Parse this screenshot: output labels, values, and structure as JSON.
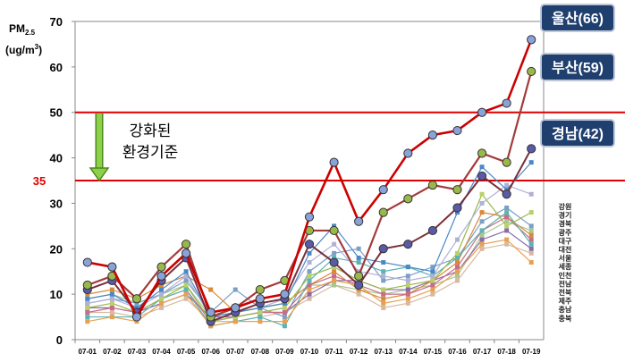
{
  "chart_data": {
    "type": "line",
    "ylabel_main": "PM",
    "ylabel_sub": "2.5",
    "ylabel_unit": "(ug/m",
    "ylabel_unit_sup": "3",
    "ylabel_unit_close": ")",
    "ylim": [
      0,
      70
    ],
    "yticks": [
      "0",
      "10",
      "20",
      "30",
      "40",
      "50",
      "60",
      "70"
    ],
    "grid": false,
    "categories": [
      "07-01",
      "07-02",
      "07-03",
      "07-04",
      "07-05",
      "07-06",
      "07-07",
      "07-08",
      "07-09",
      "07-10",
      "07-11",
      "07-12",
      "07-13",
      "07-14",
      "07-15",
      "07-16",
      "07-17",
      "07-18",
      "07-19"
    ],
    "reference_lines": [
      {
        "value": 50,
        "color": "#e00000"
      },
      {
        "value": 35,
        "color": "#e00000",
        "label": "35"
      }
    ],
    "annotation": {
      "line1": "강화된",
      "line2": "환경기준"
    },
    "callouts": [
      {
        "label": "울산(66)",
        "value": 66
      },
      {
        "label": "부산(59)",
        "value": 59
      },
      {
        "label": "경남(42)",
        "value": 42
      }
    ],
    "legend_labels": [
      "강원",
      "경기",
      "경북",
      "광주",
      "대구",
      "대전",
      "서울",
      "세종",
      "인천",
      "전남",
      "전북",
      "제주",
      "충남",
      "충북"
    ],
    "series": [
      {
        "name": "울산",
        "color": "#cc0000",
        "marker": "#8aa2d8",
        "width": 2.6,
        "values": [
          17,
          16,
          5,
          14,
          19,
          6,
          7,
          9,
          10,
          27,
          39,
          26,
          33,
          41,
          45,
          46,
          50,
          52,
          66
        ]
      },
      {
        "name": "부산",
        "color": "#a33b3b",
        "marker": "#9ab84a",
        "width": 2.2,
        "values": [
          12,
          14,
          9,
          16,
          21,
          5,
          7,
          11,
          13,
          24,
          24,
          14,
          28,
          31,
          34,
          33,
          41,
          39,
          59
        ]
      },
      {
        "name": "경남",
        "color": "#7a2e3a",
        "marker": "#5a5aa8",
        "width": 2.0,
        "values": [
          11,
          13,
          6,
          13,
          18,
          4,
          6,
          8,
          9,
          21,
          17,
          12,
          20,
          21,
          24,
          29,
          36,
          32,
          42
        ]
      },
      {
        "name": "",
        "color": "#4a88c8",
        "marker": "#4a88c8",
        "width": 1.2,
        "values": [
          9,
          10,
          7,
          11,
          15,
          5,
          6,
          7,
          8,
          19,
          25,
          18,
          17,
          16,
          15,
          28,
          38,
          33,
          39
        ]
      },
      {
        "name": "",
        "color": "#b0b0d8",
        "marker": "#b0b0d8",
        "width": 1.2,
        "values": [
          8,
          9,
          7,
          10,
          14,
          5,
          6,
          7,
          9,
          17,
          21,
          15,
          14,
          13,
          14,
          22,
          30,
          34,
          32
        ]
      },
      {
        "name": "",
        "color": "#9ab84a",
        "marker": "#b8d06a",
        "width": 1.2,
        "values": [
          7,
          8,
          6,
          9,
          12,
          4,
          5,
          6,
          7,
          14,
          16,
          13,
          11,
          12,
          13,
          19,
          32,
          25,
          28
        ]
      },
      {
        "name": "",
        "color": "#e8a050",
        "marker": "#e8a050",
        "width": 1.2,
        "values": [
          4,
          5,
          4,
          8,
          10,
          3,
          4,
          4,
          4,
          11,
          13,
          12,
          8,
          9,
          11,
          15,
          21,
          22,
          17
        ]
      },
      {
        "name": "",
        "color": "#5ab4b4",
        "marker": "#5ab4b4",
        "width": 1.2,
        "values": [
          5,
          5,
          5,
          9,
          11,
          3,
          4,
          5,
          3,
          13,
          18,
          17,
          15,
          16,
          14,
          18,
          24,
          28,
          21
        ]
      },
      {
        "name": "",
        "color": "#c86c8a",
        "marker": "#c86c8a",
        "width": 1.2,
        "values": [
          6,
          7,
          6,
          9,
          11,
          4,
          5,
          6,
          6,
          12,
          14,
          12,
          10,
          10,
          12,
          16,
          24,
          27,
          22
        ]
      },
      {
        "name": "",
        "color": "#d88a3a",
        "marker": "#d88a3a",
        "width": 1.2,
        "values": [
          10,
          11,
          9,
          12,
          14,
          11,
          6,
          7,
          8,
          12,
          15,
          11,
          9,
          10,
          13,
          17,
          28,
          27,
          23
        ]
      },
      {
        "name": "",
        "color": "#7aa0c8",
        "marker": "#7aa0c8",
        "width": 1.2,
        "values": [
          8,
          9,
          8,
          10,
          13,
          6,
          11,
          7,
          5,
          15,
          19,
          20,
          13,
          14,
          16,
          18,
          26,
          29,
          25
        ]
      },
      {
        "name": "",
        "color": "#8a6aa8",
        "marker": "#8a6aa8",
        "width": 1.2,
        "values": [
          7,
          7,
          6,
          8,
          10,
          5,
          5,
          6,
          6,
          10,
          13,
          13,
          11,
          11,
          13,
          15,
          22,
          24,
          20
        ]
      },
      {
        "name": "",
        "color": "#a8c890",
        "marker": "#a8c890",
        "width": 1.2,
        "values": [
          9,
          10,
          8,
          10,
          12,
          5,
          6,
          7,
          8,
          12,
          12,
          11,
          10,
          11,
          12,
          14,
          23,
          26,
          24
        ]
      },
      {
        "name": "",
        "color": "#d8b8a0",
        "marker": "#d8b8a0",
        "width": 1.2,
        "values": [
          6,
          6,
          5,
          7,
          9,
          4,
          4,
          5,
          6,
          9,
          12,
          10,
          7,
          8,
          10,
          13,
          20,
          21,
          19
        ]
      }
    ]
  }
}
